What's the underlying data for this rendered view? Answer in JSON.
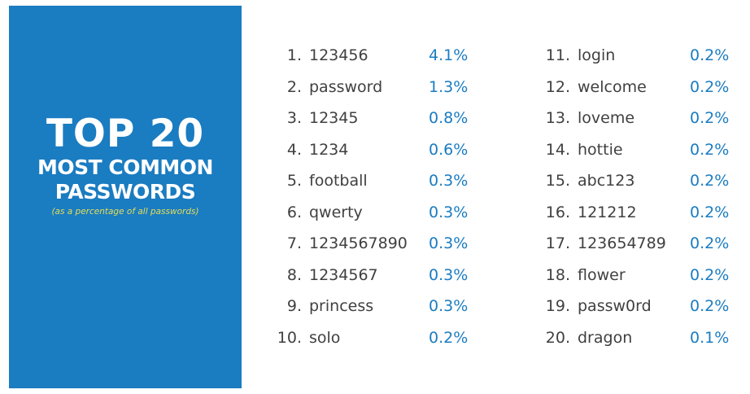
{
  "title": {
    "main": "TOP 20",
    "line2": "MOST COMMON",
    "line3": "PASSWORDS",
    "note": "(as a percentage of all passwords)"
  },
  "colors": {
    "panel": "#1a7cc1",
    "percent_text": "#1a7cc1",
    "note_text": "#e6de55",
    "body_text": "#404040"
  },
  "left_column": [
    {
      "rank": "1.",
      "password": "123456",
      "percent": "4.1%"
    },
    {
      "rank": "2.",
      "password": "password",
      "percent": "1.3%"
    },
    {
      "rank": "3.",
      "password": "12345",
      "percent": "0.8%"
    },
    {
      "rank": "4.",
      "password": "1234",
      "percent": "0.6%"
    },
    {
      "rank": "5.",
      "password": "football",
      "percent": "0.3%"
    },
    {
      "rank": "6.",
      "password": "qwerty",
      "percent": "0.3%"
    },
    {
      "rank": "7.",
      "password": "1234567890",
      "percent": "0.3%"
    },
    {
      "rank": "8.",
      "password": "1234567",
      "percent": "0.3%"
    },
    {
      "rank": "9.",
      "password": "princess",
      "percent": "0.3%"
    },
    {
      "rank": "10.",
      "password": "solo",
      "percent": "0.2%"
    }
  ],
  "right_column": [
    {
      "rank": "11.",
      "password": "login",
      "percent": "0.2%"
    },
    {
      "rank": "12.",
      "password": "welcome",
      "percent": "0.2%"
    },
    {
      "rank": "13.",
      "password": "loveme",
      "percent": "0.2%"
    },
    {
      "rank": "14.",
      "password": "hottie",
      "percent": "0.2%"
    },
    {
      "rank": "15.",
      "password": "abc123",
      "percent": "0.2%"
    },
    {
      "rank": "16.",
      "password": "121212",
      "percent": "0.2%"
    },
    {
      "rank": "17.",
      "password": "123654789",
      "percent": "0.2%"
    },
    {
      "rank": "18.",
      "password": "flower",
      "percent": "0.2%"
    },
    {
      "rank": "19.",
      "password": "passw0rd",
      "percent": "0.2%"
    },
    {
      "rank": "20.",
      "password": "dragon",
      "percent": "0.1%"
    }
  ]
}
